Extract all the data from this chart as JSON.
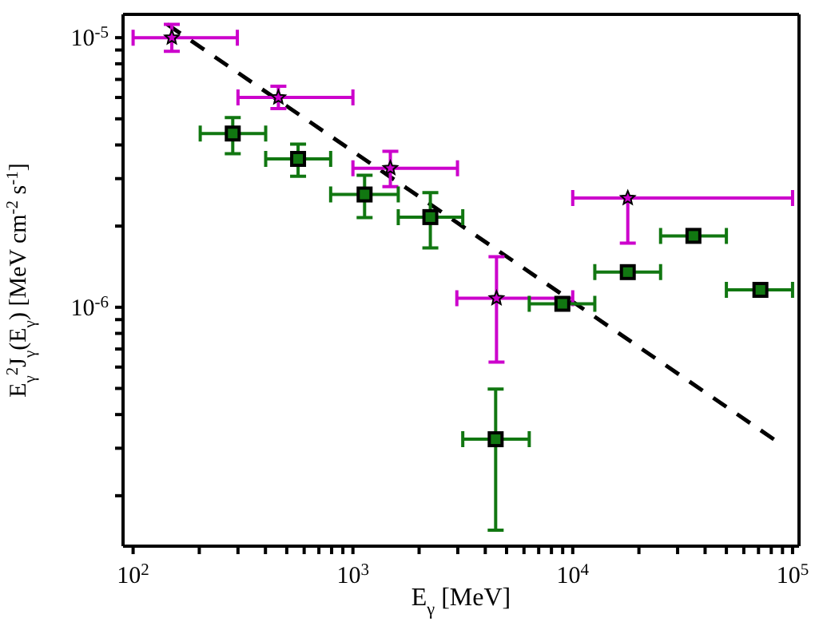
{
  "chart_data": {
    "type": "scatter",
    "xlabel": "E$_{γ}$ [MeV]",
    "ylabel": "E$_{γ}$$^{2}$J$_{γ}$(E$_{γ}$) [MeV cm$^{-2}$ s$^{-1}$]",
    "log": "xy",
    "xlim": [
      90,
      107000
    ],
    "ylim": [
      1.3e-07,
      1.22e-05
    ],
    "xticks": [
      {
        "value": 100,
        "label": "10$^{2}$"
      },
      {
        "value": 200,
        "label": null
      },
      {
        "value": 300,
        "label": null
      },
      {
        "value": 400,
        "label": null
      },
      {
        "value": 500,
        "label": null
      },
      {
        "value": 600,
        "label": null
      },
      {
        "value": 700,
        "label": null
      },
      {
        "value": 800,
        "label": null
      },
      {
        "value": 900,
        "label": null
      },
      {
        "value": 1000,
        "label": "10$^{3}$"
      },
      {
        "value": 2000,
        "label": null
      },
      {
        "value": 3000,
        "label": null
      },
      {
        "value": 4000,
        "label": null
      },
      {
        "value": 5000,
        "label": null
      },
      {
        "value": 6000,
        "label": null
      },
      {
        "value": 7000,
        "label": null
      },
      {
        "value": 8000,
        "label": null
      },
      {
        "value": 9000,
        "label": null
      },
      {
        "value": 10000,
        "label": "10$^{4}$"
      },
      {
        "value": 20000,
        "label": null
      },
      {
        "value": 30000,
        "label": null
      },
      {
        "value": 40000,
        "label": null
      },
      {
        "value": 50000,
        "label": null
      },
      {
        "value": 60000,
        "label": null
      },
      {
        "value": 70000,
        "label": null
      },
      {
        "value": 80000,
        "label": null
      },
      {
        "value": 90000,
        "label": null
      },
      {
        "value": 100000,
        "label": "10$^{5}$"
      }
    ],
    "yticks": [
      {
        "value": 2e-07,
        "label": null
      },
      {
        "value": 3e-07,
        "label": null
      },
      {
        "value": 4e-07,
        "label": null
      },
      {
        "value": 5e-07,
        "label": null
      },
      {
        "value": 6e-07,
        "label": null
      },
      {
        "value": 7e-07,
        "label": null
      },
      {
        "value": 8e-07,
        "label": null
      },
      {
        "value": 9e-07,
        "label": null
      },
      {
        "value": 1e-06,
        "label": "10$^{-6}$"
      },
      {
        "value": 2e-06,
        "label": null
      },
      {
        "value": 3e-06,
        "label": null
      },
      {
        "value": 4e-06,
        "label": null
      },
      {
        "value": 5e-06,
        "label": null
      },
      {
        "value": 6e-06,
        "label": null
      },
      {
        "value": 7e-06,
        "label": null
      },
      {
        "value": 8e-06,
        "label": null
      },
      {
        "value": 9e-06,
        "label": null
      },
      {
        "value": 1e-05,
        "label": "10$^{-5}$"
      }
    ],
    "series": [
      {
        "type": "line",
        "color": "#000000",
        "line_style": "dashed",
        "marker": "none",
        "x": [
          143,
          84900
        ],
        "values": [
          1.12e-05,
          3.18e-07
        ]
      },
      {
        "color": "#cc00cc",
        "marker": "star",
        "x": [
          150,
          458,
          1480,
          4500,
          17800
        ],
        "values": [
          1e-05,
          6e-06,
          3.28e-06,
          1.08e-06,
          2.54e-06
        ],
        "errors": [
          [
            8.9e-06,
            1.12e-05
          ],
          [
            5.46e-06,
            6.6e-06
          ],
          [
            2.8e-06,
            3.79e-06
          ],
          [
            6.26e-07,
            1.54e-06
          ],
          [
            1.73e-06,
            2.54e-06
          ]
        ],
        "xerrors": [
          [
            100,
            298
          ],
          [
            300,
            1000
          ],
          [
            1000,
            2990
          ],
          [
            2970,
            10000
          ],
          [
            10000,
            100000
          ]
        ]
      },
      {
        "color": "#117711",
        "marker": "square",
        "x": [
          284,
          563,
          1130,
          2250,
          4460,
          8970,
          17800,
          35400,
          71400
        ],
        "values": [
          4.41e-06,
          3.55e-06,
          2.62e-06,
          2.16e-06,
          3.24e-07,
          1.03e-06,
          1.35e-06,
          1.84e-06,
          1.16e-06
        ],
        "errors": [
          [
            3.71e-06,
            5.05e-06
          ],
          [
            3.06e-06,
            4.03e-06
          ],
          [
            2.15e-06,
            3.09e-06
          ],
          [
            1.66e-06,
            2.66e-06
          ],
          [
            1.49e-07,
            4.97e-07
          ],
          null,
          null,
          null,
          null
        ],
        "xerrors": [
          [
            202,
            401
          ],
          [
            401,
            792
          ],
          [
            792,
            1608
          ],
          [
            1608,
            3160
          ],
          [
            3160,
            6340
          ],
          [
            6340,
            12600
          ],
          [
            12600,
            25100
          ],
          [
            25100,
            50000
          ],
          [
            50000,
            100000
          ]
        ]
      }
    ]
  }
}
